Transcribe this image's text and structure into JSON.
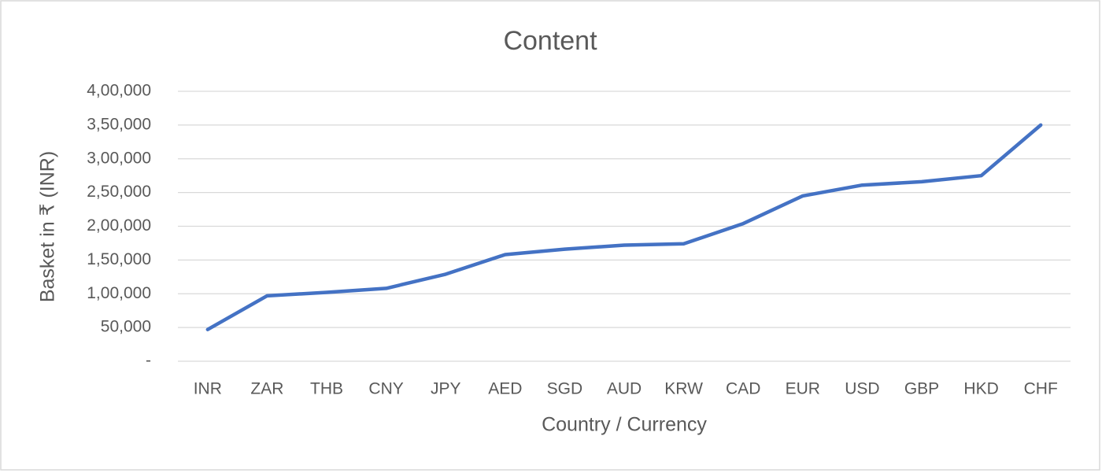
{
  "chart_data": {
    "type": "line",
    "title": "Content",
    "x_label": "Country / Currency",
    "y_label": "Basket in ₹ (INR)",
    "categories": [
      "INR",
      "ZAR",
      "THB",
      "CNY",
      "JPY",
      "AED",
      "SGD",
      "AUD",
      "KRW",
      "CAD",
      "EUR",
      "USD",
      "GBP",
      "HKD",
      "CHF"
    ],
    "values": [
      47000,
      97000,
      102000,
      108000,
      129000,
      158000,
      166000,
      172000,
      174000,
      204000,
      245000,
      261000,
      266000,
      275000,
      350000
    ],
    "color": "#4472c4",
    "ylim": [
      0,
      400000
    ],
    "yticks": [
      {
        "value": 0,
        "label": "-"
      },
      {
        "value": 50000,
        "label": "50,000"
      },
      {
        "value": 100000,
        "label": "1,00,000"
      },
      {
        "value": 150000,
        "label": "1,50,000"
      },
      {
        "value": 200000,
        "label": "2,00,000"
      },
      {
        "value": 250000,
        "label": "2,50,000"
      },
      {
        "value": 300000,
        "label": "3,00,000"
      },
      {
        "value": 350000,
        "label": "3,50,000"
      },
      {
        "value": 400000,
        "label": "4,00,000"
      }
    ],
    "grid": true
  }
}
